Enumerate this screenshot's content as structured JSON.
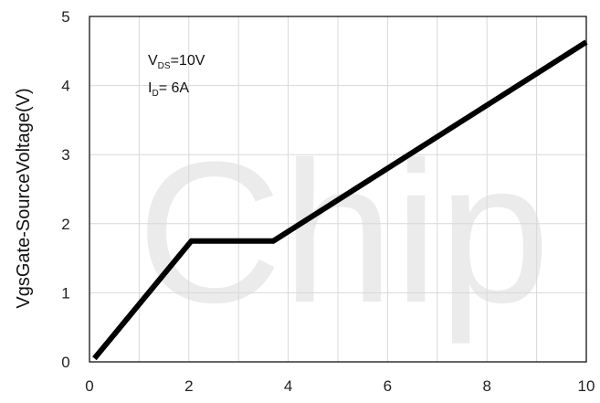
{
  "chart_data": {
    "type": "line",
    "title": "",
    "xlabel": "",
    "ylabel": "VgsGate-SourceVoltage(V)",
    "xlim": [
      0,
      10
    ],
    "ylim": [
      0,
      5
    ],
    "x_ticks": [
      "0",
      "2",
      "4",
      "6",
      "8",
      "10"
    ],
    "y_ticks": [
      "0",
      "1",
      "2",
      "3",
      "4",
      "5"
    ],
    "grid": true,
    "series": [
      {
        "x": [
          0.1,
          2.05,
          3.7,
          10
        ],
        "y": [
          0.05,
          1.75,
          1.75,
          4.63
        ]
      }
    ],
    "annotations": {
      "vds": {
        "main": "V",
        "sub": "DS",
        "rest": "=10V"
      },
      "id": {
        "main": "I",
        "sub": "D",
        "rest": "= 6A"
      }
    },
    "watermark": "Chip",
    "line_color": "#000000",
    "grid_color": "#d9d9d9"
  }
}
